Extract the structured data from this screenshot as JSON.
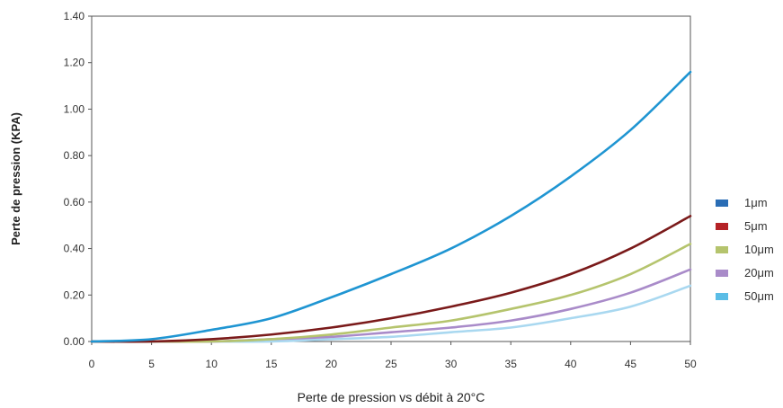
{
  "chart_data": {
    "type": "line",
    "title": "",
    "xlabel": "Perte de pression vs débit à 20°C",
    "ylabel": "Perte de pression (KPA)",
    "xlim": [
      0,
      50
    ],
    "ylim": [
      0,
      1.4
    ],
    "x_ticks": [
      "0",
      "5",
      "10",
      "15",
      "20",
      "25",
      "30",
      "35",
      "40",
      "45",
      "50"
    ],
    "y_ticks": [
      "0.00",
      "0.20",
      "0.40",
      "0.60",
      "0.80",
      "1.00",
      "1.20",
      "1.40"
    ],
    "grid": false,
    "legend_position": "right",
    "legend": [
      {
        "label": "1μm",
        "color": "#2a6db5"
      },
      {
        "label": "5μm",
        "color": "#b52226"
      },
      {
        "label": "10μm",
        "color": "#b5c46d"
      },
      {
        "label": "20μm",
        "color": "#a98bc9"
      },
      {
        "label": "50μm",
        "color": "#5bbde6"
      }
    ],
    "x": [
      0,
      5,
      10,
      15,
      20,
      25,
      30,
      35,
      40,
      45,
      50
    ],
    "series": [
      {
        "name": "1μm",
        "color": "#1f95d2",
        "values": [
          0.0,
          0.01,
          0.05,
          0.1,
          0.19,
          0.29,
          0.4,
          0.54,
          0.71,
          0.91,
          1.16
        ]
      },
      {
        "name": "5μm",
        "color": "#7a1a1a",
        "values": [
          0.0,
          0.0,
          0.01,
          0.03,
          0.06,
          0.1,
          0.15,
          0.21,
          0.29,
          0.4,
          0.54
        ]
      },
      {
        "name": "10μm",
        "color": "#b5c46d",
        "values": [
          0.0,
          0.0,
          0.0,
          0.01,
          0.03,
          0.06,
          0.09,
          0.14,
          0.2,
          0.29,
          0.42
        ]
      },
      {
        "name": "20μm",
        "color": "#a98bc9",
        "values": [
          0.0,
          0.0,
          0.0,
          0.01,
          0.02,
          0.04,
          0.06,
          0.09,
          0.14,
          0.21,
          0.31
        ]
      },
      {
        "name": "50μm",
        "color": "#a9d8f0",
        "values": [
          0.0,
          0.0,
          0.0,
          0.0,
          0.01,
          0.02,
          0.04,
          0.06,
          0.1,
          0.15,
          0.24
        ]
      }
    ]
  }
}
